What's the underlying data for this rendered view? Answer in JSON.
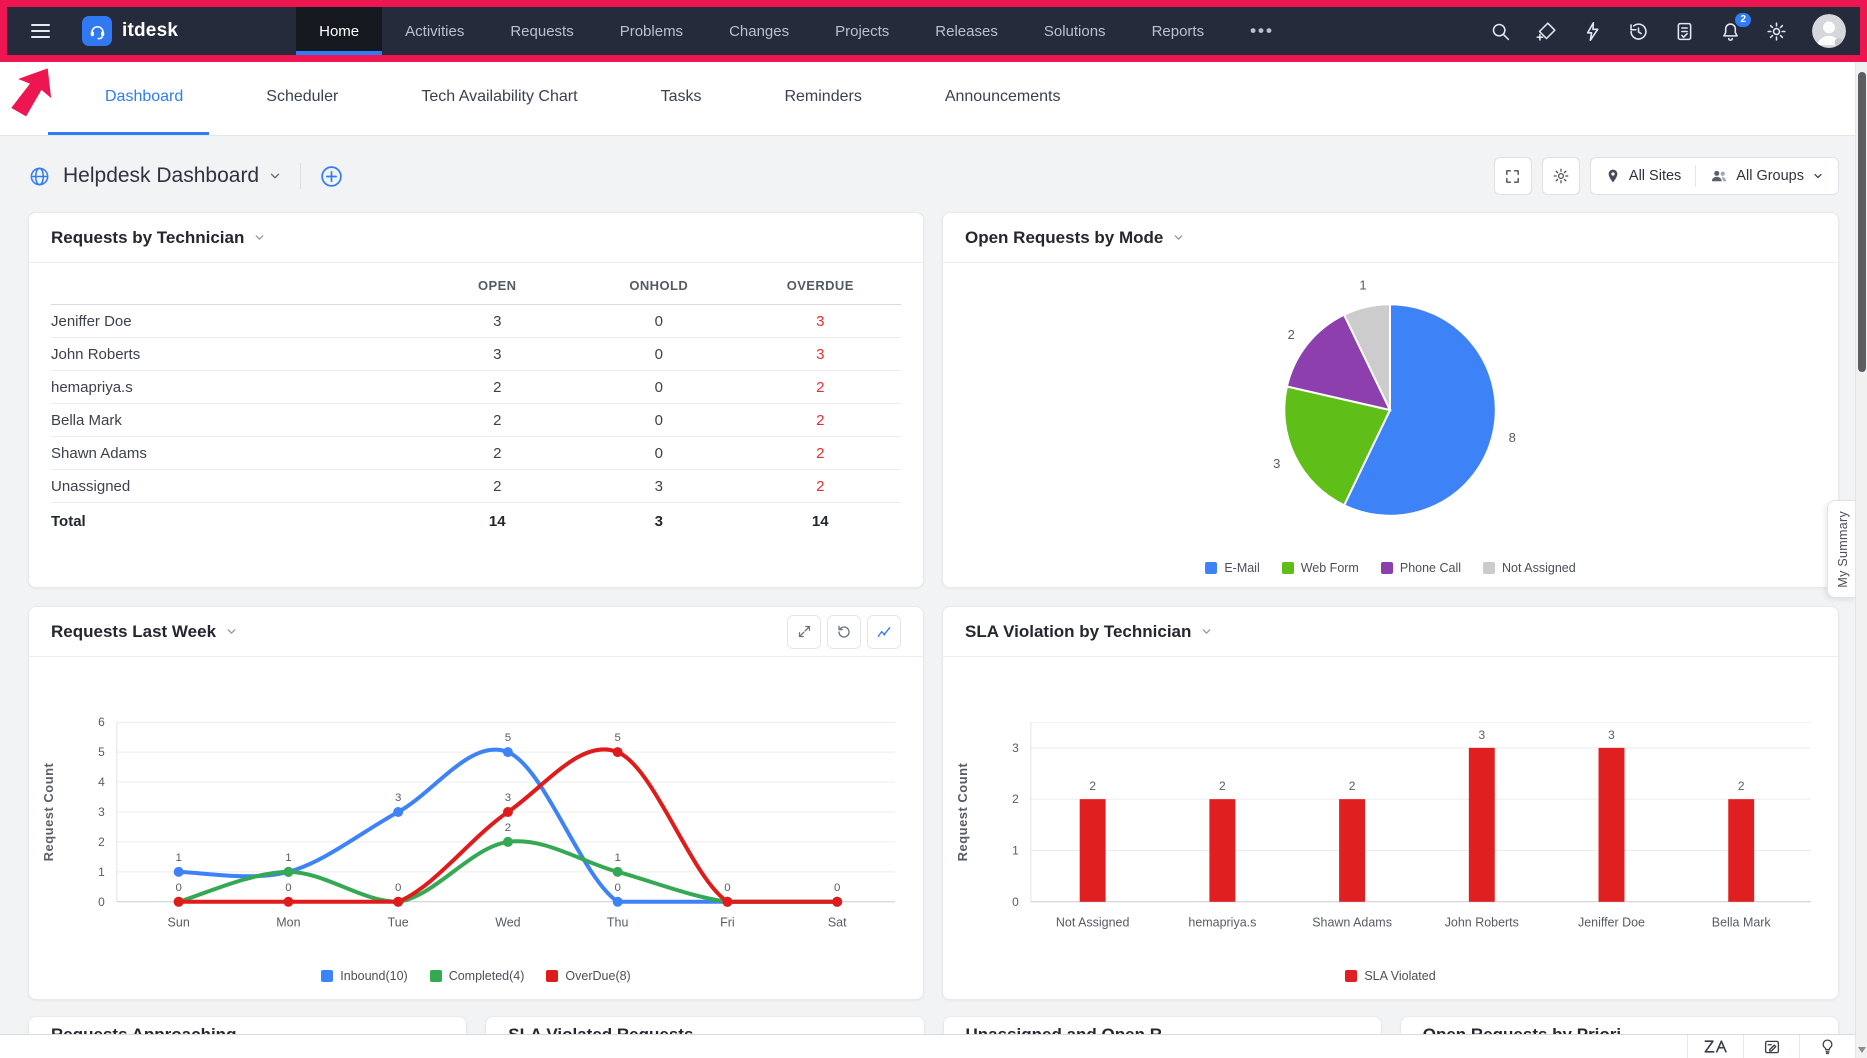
{
  "app": {
    "brand": "itdesk"
  },
  "annotation": {
    "highlight_color": "#ee1650",
    "note": "red box around top navbar with arrow pointer"
  },
  "navbar": {
    "items": [
      {
        "label": "Home",
        "active": true
      },
      {
        "label": "Activities"
      },
      {
        "label": "Requests"
      },
      {
        "label": "Problems"
      },
      {
        "label": "Changes"
      },
      {
        "label": "Projects"
      },
      {
        "label": "Releases"
      },
      {
        "label": "Solutions"
      },
      {
        "label": "Reports"
      },
      {
        "label": "•••",
        "more": true
      }
    ],
    "action_icons": [
      "search",
      "add-request",
      "quick-actions",
      "history",
      "approvals",
      "notifications",
      "settings"
    ],
    "notification_badge": "2"
  },
  "toolbar": {
    "items": [
      {
        "label": "Dashboard",
        "icon": "dashboard",
        "active": true
      },
      {
        "label": "Scheduler",
        "icon": "calendar"
      },
      {
        "label": "Tech Availability Chart",
        "icon": "tech"
      },
      {
        "label": "Tasks",
        "icon": "tasks"
      },
      {
        "label": "Reminders",
        "icon": "alarm"
      },
      {
        "label": "Announcements",
        "icon": "megaphone"
      }
    ]
  },
  "header": {
    "title": "Helpdesk Dashboard",
    "sites": "All Sites",
    "groups": "All Groups"
  },
  "my_summary": "My Summary",
  "table": {
    "title": "Requests by Technician",
    "columns": [
      "OPEN",
      "ONHOLD",
      "OVERDUE"
    ],
    "rows": [
      {
        "name": "Jeniffer Doe",
        "open": "3",
        "onhold": "0",
        "overdue": "3"
      },
      {
        "name": "John Roberts",
        "open": "3",
        "onhold": "0",
        "overdue": "3"
      },
      {
        "name": "hemapriya.s",
        "open": "2",
        "onhold": "0",
        "overdue": "2"
      },
      {
        "name": "Bella Mark",
        "open": "2",
        "onhold": "0",
        "overdue": "2"
      },
      {
        "name": "Shawn Adams",
        "open": "2",
        "onhold": "0",
        "overdue": "2"
      },
      {
        "name": "Unassigned",
        "open": "2",
        "onhold": "3",
        "overdue": "2"
      }
    ],
    "total": {
      "name": "Total",
      "open": "14",
      "onhold": "3",
      "overdue": "14"
    }
  },
  "chart_data": [
    {
      "type": "pie",
      "title": "Open Requests by Mode",
      "labels": [
        "E-Mail",
        "Web Form",
        "Phone Call",
        "Not Assigned"
      ],
      "values": [
        8,
        3,
        2,
        1
      ],
      "colors": [
        "#3e82f7",
        "#5fbe17",
        "#8e3fae",
        "#cccccc"
      ],
      "legend_position": "bottom"
    },
    {
      "type": "line",
      "title": "Requests Last Week",
      "x": [
        "Sun",
        "Mon",
        "Tue",
        "Wed",
        "Thu",
        "Fri",
        "Sat"
      ],
      "series": [
        {
          "name": "Inbound(10)",
          "color": "#3e82f7",
          "values": [
            1,
            1,
            3,
            5,
            0,
            0,
            0
          ]
        },
        {
          "name": "Completed(4)",
          "color": "#34a853",
          "values": [
            0,
            1,
            0,
            2,
            1,
            0,
            0
          ]
        },
        {
          "name": "OverDue(8)",
          "color": "#df1b1b",
          "values": [
            0,
            0,
            0,
            3,
            5,
            0,
            0
          ]
        }
      ],
      "ylabel": "Request Count",
      "ylim": [
        0,
        6
      ],
      "yticks": [
        0,
        1,
        2,
        3,
        4,
        5,
        6
      ],
      "grid": true,
      "legend_position": "bottom"
    },
    {
      "type": "bar",
      "title": "SLA Violation by Technician",
      "categories": [
        "Not Assigned",
        "hemapriya.s",
        "Shawn Adams",
        "John Roberts",
        "Jeniffer Doe",
        "Bella Mark"
      ],
      "series": [
        {
          "name": "SLA Violated",
          "color": "#e02020",
          "values": [
            2,
            2,
            2,
            3,
            3,
            2
          ]
        }
      ],
      "ylabel": "Request Count",
      "ylim": [
        0,
        3.5
      ],
      "yticks": [
        0,
        1,
        2,
        3
      ],
      "grid": true,
      "legend_position": "bottom"
    }
  ],
  "bottom_panels": [
    {
      "title": "Requests Approaching"
    },
    {
      "title": "SLA Violated Requests"
    },
    {
      "title": "Unassigned and Open R"
    },
    {
      "title": "Open Requests by Priori"
    }
  ],
  "footer_icons": [
    "zia",
    "feedback",
    "suggestion"
  ]
}
